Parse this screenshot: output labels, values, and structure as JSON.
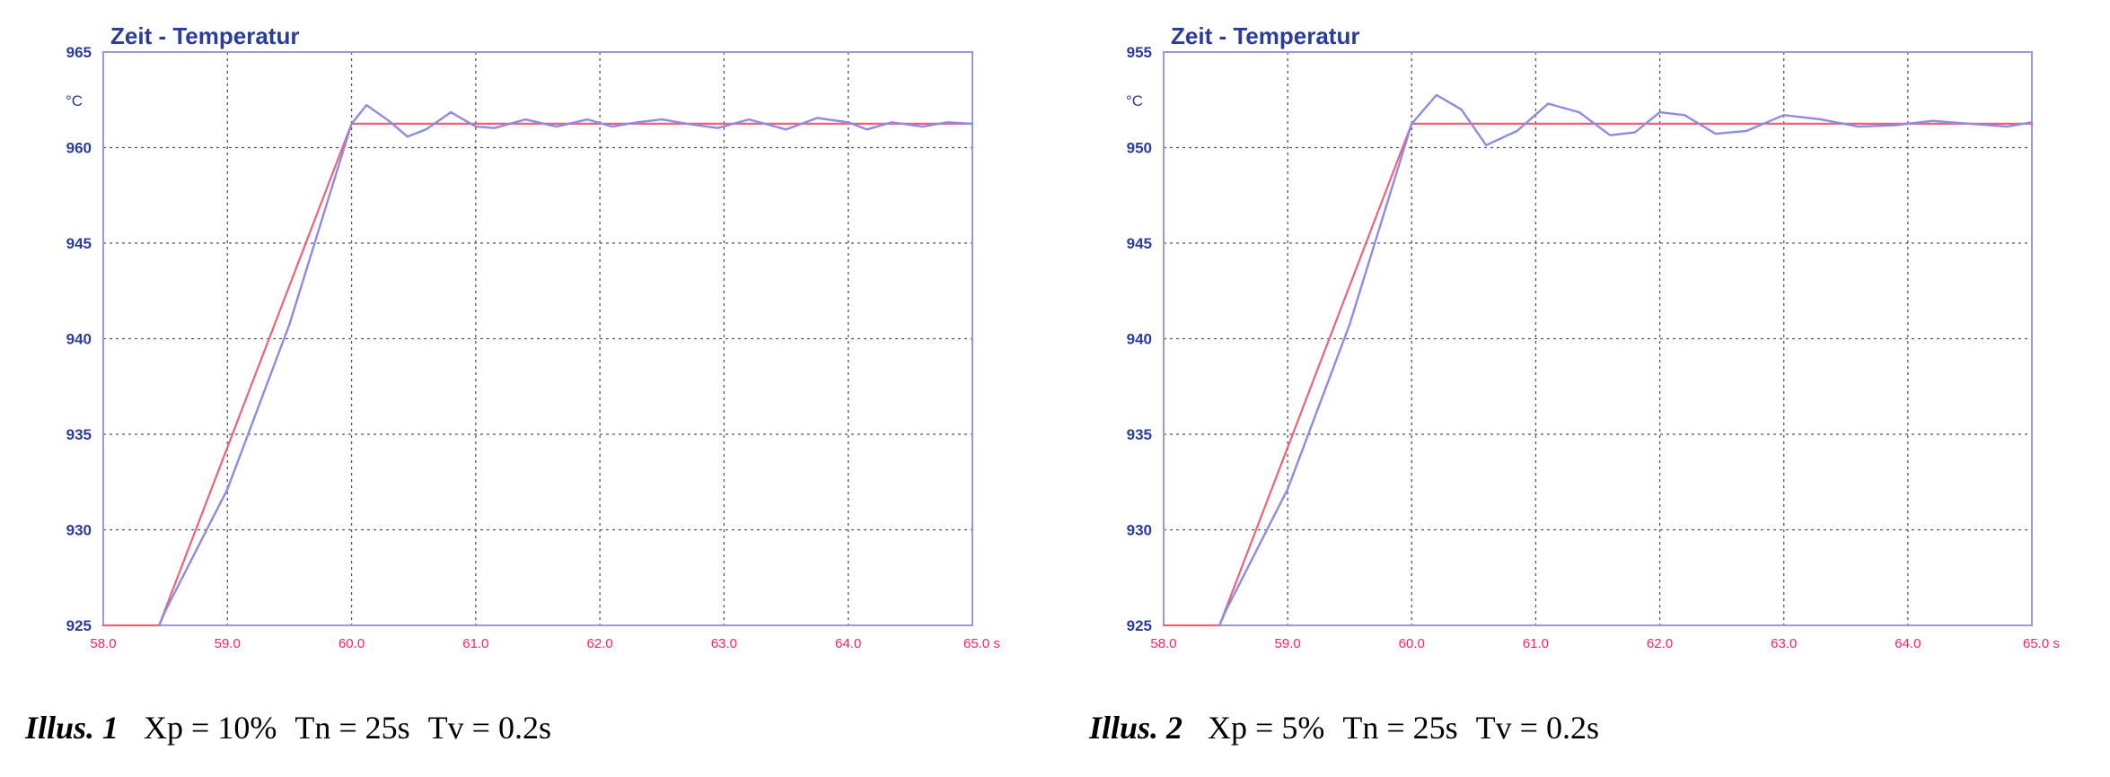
{
  "chart_data": [
    {
      "type": "line",
      "title": "Zeit - Temperatur",
      "ylabel": "°C",
      "xlim": [
        58.0,
        65.0
      ],
      "ylim": [
        925,
        965
      ],
      "x_ticks": [
        "58.0",
        "59.0",
        "60.0",
        "61.0",
        "62.0",
        "63.0",
        "64.0",
        "65.0 s"
      ],
      "y_ticks": [
        "965",
        "960",
        "945",
        "940",
        "935",
        "930",
        "925"
      ],
      "grid": true,
      "series": [
        {
          "role": "setpoint",
          "color": "#f06078",
          "x": [
            58.0,
            58.45,
            60.0,
            65.0
          ],
          "y": [
            925.0,
            925.0,
            960.0,
            960.0
          ]
        },
        {
          "role": "actual",
          "color": "#8c8ce0",
          "x": [
            58.45,
            58.5,
            59.0,
            59.5,
            60.0,
            60.12,
            60.3,
            60.45,
            60.6,
            60.8,
            61.0,
            61.15,
            61.4,
            61.65,
            61.9,
            62.1,
            62.3,
            62.5,
            62.7,
            62.95,
            63.2,
            63.5,
            63.75,
            64.0,
            64.15,
            64.35,
            64.6,
            64.8,
            65.0
          ],
          "y": [
            925.0,
            926.0,
            934.5,
            946.0,
            960.0,
            961.3,
            960.2,
            959.1,
            959.6,
            960.8,
            959.8,
            959.7,
            960.3,
            959.8,
            960.3,
            959.8,
            960.1,
            960.3,
            960.0,
            959.7,
            960.3,
            959.6,
            960.4,
            960.1,
            959.6,
            960.1,
            959.8,
            960.1,
            960.0
          ]
        }
      ]
    },
    {
      "type": "line",
      "title": "Zeit - Temperatur",
      "ylabel": "°C",
      "xlim": [
        58.0,
        65.0
      ],
      "ylim": [
        925,
        965
      ],
      "x_ticks": [
        "58.0",
        "59.0",
        "60.0",
        "61.0",
        "62.0",
        "63.0",
        "64.0",
        "65.0 s"
      ],
      "y_ticks": [
        "955",
        "950",
        "945",
        "940",
        "935",
        "930",
        "925"
      ],
      "grid": true,
      "series": [
        {
          "role": "setpoint",
          "color": "#f06078",
          "x": [
            58.0,
            58.45,
            60.0,
            65.0
          ],
          "y": [
            925.0,
            925.0,
            960.0,
            960.0
          ]
        },
        {
          "role": "actual",
          "color": "#8c8ce0",
          "x": [
            58.45,
            58.5,
            59.0,
            59.5,
            60.0,
            60.2,
            60.4,
            60.6,
            60.85,
            61.1,
            61.35,
            61.6,
            61.8,
            62.0,
            62.2,
            62.45,
            62.7,
            63.0,
            63.3,
            63.6,
            63.9,
            64.2,
            64.5,
            64.8,
            65.0
          ],
          "y": [
            925.0,
            926.0,
            934.5,
            946.0,
            960.0,
            962.0,
            961.0,
            958.5,
            959.5,
            961.4,
            960.8,
            959.2,
            959.4,
            960.8,
            960.6,
            959.3,
            959.5,
            960.6,
            960.3,
            959.8,
            959.9,
            960.2,
            960.0,
            959.8,
            960.1
          ]
        }
      ]
    }
  ],
  "captions": [
    {
      "label": "Illus. 1",
      "xp": "Xp = 10%",
      "tn": "Tn = 25s",
      "tv": "Tv = 0.2s"
    },
    {
      "label": "Illus. 2",
      "xp": "Xp = 5%",
      "tn": "Tn = 25s",
      "tv": "Tv = 0.2s"
    }
  ],
  "colors": {
    "axis": "#9a9ad8",
    "grid": "#555555",
    "title": "#2b3c9a",
    "x_tick": "#ff1e64",
    "setpoint": "#f06078",
    "actual": "#8c8ce0"
  }
}
